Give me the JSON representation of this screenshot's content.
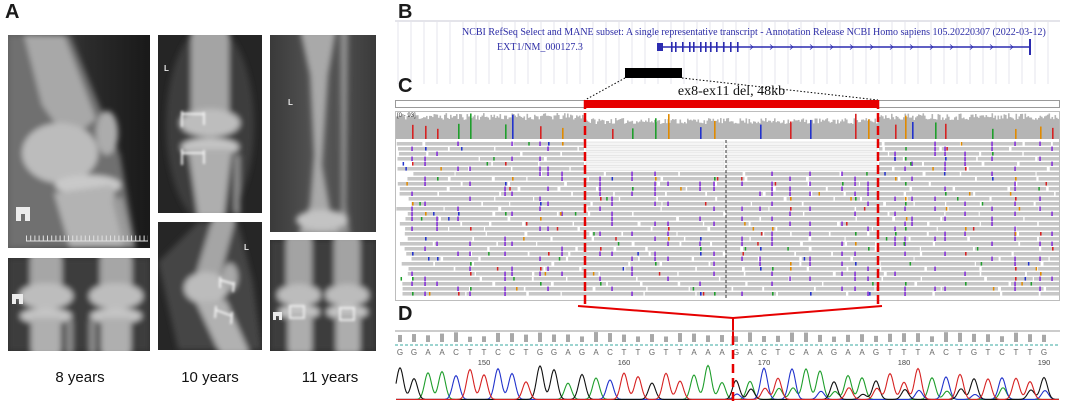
{
  "figure": {
    "panel_a": {
      "label": "A",
      "captions": {
        "age_8": "8 years",
        "age_10": "10 years",
        "age_11": "11 years"
      },
      "markers": {
        "ten_year_ap": "L",
        "ten_year_lateral": "L",
        "eleven_year_ap": "L"
      }
    },
    "panel_b": {
      "label": "B",
      "track_title": "NCBI RefSeq Select and MANE subset: A single representative transcript - Annotation Release NCBI Homo sapiens 105.20220307 (2022-03-12)",
      "transcript": "EXT1/NM_000127.3"
    },
    "panel_c": {
      "label": "C",
      "deletion_label": "ex8-ex11 del, 48kb",
      "coverage_scale": "[0 - 93]"
    },
    "panel_d": {
      "label": "D",
      "sequence": [
        "G",
        "G",
        "A",
        "A",
        "C",
        "T",
        "T",
        "C",
        "C",
        "T",
        "G",
        "G",
        "A",
        "G",
        "A",
        "C",
        "T",
        "T",
        "G",
        "T",
        "T",
        "A",
        "A",
        "A",
        "G",
        "A",
        "C",
        "T",
        "C",
        "A",
        "A",
        "G",
        "A",
        "A",
        "G",
        "T",
        "T",
        "T",
        "A",
        "C",
        "T",
        "G",
        "T",
        "C",
        "T",
        "T",
        "G"
      ],
      "position_labels": [
        "150",
        "160",
        "170",
        "180",
        "190"
      ]
    }
  },
  "colors": {
    "base_A": "#1f9e2c",
    "base_C": "#2233cc",
    "base_G": "#111111",
    "base_T": "#d62222",
    "deletion": "#e60000",
    "gene_track": "#2b2bb0",
    "insertion": "#8a3ad8"
  }
}
